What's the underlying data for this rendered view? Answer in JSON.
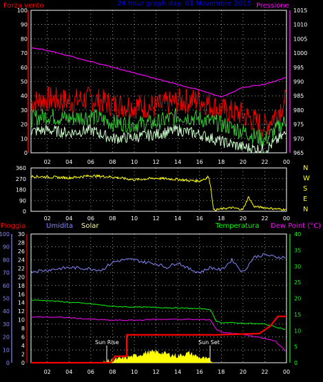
{
  "chart_data": [
    {
      "type": "line",
      "title": "24 hour graph day: 01 Novembre 2015",
      "left_axis_label": "Forza vento",
      "right_axis_label": "Pressione",
      "ylim_left": [
        0,
        100
      ],
      "ylim_right": [
        965,
        1015
      ],
      "left_ticks": [
        "0",
        "10",
        "20",
        "30",
        "40",
        "50",
        "60",
        "70",
        "80",
        "90",
        "100"
      ],
      "right_ticks": [
        "965",
        "970",
        "975",
        "980",
        "985",
        "990",
        "995",
        "1000",
        "1005",
        "1010",
        "1015"
      ],
      "x_ticks": [
        "02",
        "04",
        "06",
        "08",
        "10",
        "12",
        "14",
        "16",
        "18",
        "20",
        "22",
        "00"
      ],
      "x_hours": [
        0.5,
        2,
        4,
        6,
        8,
        10,
        12,
        14,
        16,
        18,
        20,
        22,
        24
      ],
      "series": [
        {
          "axis": "left",
          "color": "#ff0000",
          "values": [
            35,
            38,
            36,
            38,
            34,
            33,
            32,
            36,
            37,
            30,
            27,
            18,
            37
          ]
        },
        {
          "axis": "left",
          "color": "#33cc33",
          "values": [
            24,
            26,
            24,
            26,
            21,
            20,
            21,
            26,
            24,
            20,
            15,
            9,
            23
          ]
        },
        {
          "axis": "left",
          "color": "#ccffcc",
          "values": [
            15,
            16,
            14,
            16,
            10,
            11,
            13,
            16,
            13,
            8,
            4,
            2,
            14
          ]
        },
        {
          "axis": "right",
          "color": "#ff00ff",
          "values": [
            1002,
            1001,
            999,
            997,
            995,
            993,
            991,
            989,
            987,
            984.5,
            988,
            989,
            991.5
          ]
        }
      ],
      "colors": {
        "left_axis": "#ff0000",
        "right_axis": "#ff00ff",
        "title": "#0000ff",
        "grid": "#ffffff"
      }
    },
    {
      "type": "line",
      "title": "",
      "ylim": [
        0,
        360
      ],
      "left_ticks": [
        "0",
        "90",
        "180",
        "270",
        "360"
      ],
      "right_labels": [
        "N",
        "W",
        "S",
        "E",
        "N"
      ],
      "x_ticks": [
        "02",
        "04",
        "06",
        "08",
        "10",
        "12",
        "14",
        "16",
        "18",
        "20",
        "22",
        "00"
      ],
      "series": [
        {
          "color": "#ffff00",
          "x_hours": [
            0.5,
            2,
            4,
            6,
            8,
            10,
            12,
            14,
            15,
            16,
            16.5,
            16.8,
            17,
            17.3,
            18,
            19,
            20,
            20.5,
            21,
            22,
            23,
            24
          ],
          "values": [
            290,
            285,
            278,
            295,
            285,
            262,
            275,
            265,
            255,
            252,
            270,
            290,
            225,
            10,
            20,
            30,
            15,
            120,
            40,
            30,
            20,
            15
          ]
        }
      ],
      "colors": {
        "line": "#ffff00",
        "right_labels": "#ffff00"
      }
    },
    {
      "type": "line",
      "title": "",
      "header_labels": {
        "rain": "Pioggia",
        "humidity": "Umidita",
        "solar": "Solar",
        "temperature": "Temperatura",
        "dew_point": "Dew Point (°C)"
      },
      "annotations": [
        "Sun Rise",
        "Sun Set"
      ],
      "ylim_humidity": [
        0,
        100
      ],
      "ylim_rain": [
        0,
        30
      ],
      "ylim_temp": [
        0,
        40
      ],
      "humidity_ticks": [
        "0",
        "10",
        "20",
        "30",
        "40",
        "50",
        "60",
        "70",
        "80",
        "90",
        "100"
      ],
      "rain_ticks": [
        "0",
        "2",
        "4",
        "6",
        "8",
        "10",
        "12",
        "14",
        "16",
        "18",
        "20",
        "22",
        "24",
        "26",
        "28",
        "30"
      ],
      "temp_ticks": [
        "0",
        "5",
        "10",
        "15",
        "20",
        "25",
        "30",
        "35",
        "40"
      ],
      "x_ticks": [
        "02",
        "04",
        "06",
        "08",
        "10",
        "12",
        "14",
        "16",
        "18",
        "20",
        "22",
        "00"
      ],
      "series": [
        {
          "name": "Umidita",
          "color": "#8888ff",
          "x_hours": [
            0.5,
            2,
            4,
            6,
            7,
            8,
            9,
            10,
            11,
            12,
            13,
            14,
            15,
            16,
            17,
            18,
            19,
            20,
            21,
            22,
            23,
            24
          ],
          "values": [
            71,
            72,
            74,
            73,
            72,
            78,
            80,
            80,
            78,
            77,
            74,
            78,
            73,
            70,
            74,
            72,
            80,
            70,
            82,
            84,
            82,
            82
          ]
        },
        {
          "name": "Temperatura",
          "color": "#00ff00",
          "x_hours": [
            0.5,
            2,
            4,
            6,
            8,
            10,
            12,
            14,
            16,
            17,
            17.5,
            18,
            20,
            22,
            24
          ],
          "values": [
            19.5,
            19.3,
            18.8,
            18.3,
            17.5,
            17.3,
            17.2,
            17,
            16.8,
            16.6,
            13,
            12.5,
            12.3,
            12,
            10.3
          ]
        },
        {
          "name": "Dew Point",
          "color": "#ff00ff",
          "x_hours": [
            0.5,
            2,
            4,
            6,
            8,
            10,
            12,
            14,
            16,
            17,
            17.5,
            18,
            20,
            22,
            23,
            24
          ],
          "values": [
            14.2,
            14.2,
            14,
            13.5,
            13.2,
            13.2,
            13.5,
            13.5,
            13.4,
            13.4,
            10.5,
            9.5,
            8.8,
            7.5,
            6.7,
            3.2
          ]
        },
        {
          "name": "Pioggia",
          "color": "#ff0000",
          "x_hours": [
            0.5,
            7.8,
            8.0,
            8.2,
            9.3,
            9.3,
            17.5,
            21.5,
            22.5,
            23.2,
            24
          ],
          "values": [
            0,
            0,
            0.5,
            1.5,
            1.5,
            6.5,
            6.5,
            6.8,
            8.5,
            10.8,
            10.8
          ]
        },
        {
          "name": "Solar",
          "color": "#ffff00",
          "x_hours": [
            7.2,
            8,
            9,
            10,
            11,
            12,
            13,
            14,
            15,
            16,
            17,
            17.3
          ],
          "values": [
            0,
            0.5,
            1,
            1.5,
            2.2,
            2.5,
            2,
            1.5,
            2.2,
            1.2,
            0.5,
            0
          ]
        }
      ],
      "colors": {
        "rain": "#ff0000",
        "humidity": "#8888ff",
        "solar": "#ffff99",
        "temperature": "#00ff00",
        "dew_point": "#ff00ff"
      }
    }
  ]
}
